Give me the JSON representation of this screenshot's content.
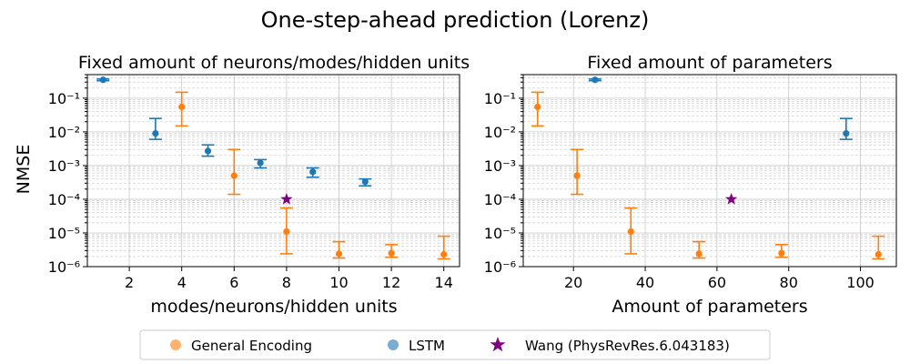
{
  "figure": {
    "suptitle": "One-step-ahead prediction (Lorenz)"
  },
  "colors": {
    "general": "#ff7f0e",
    "lstm": "#1f77b4",
    "wang": "#800080"
  },
  "legend": {
    "placement": "bottom-center",
    "entries": [
      "General Encoding",
      "LSTM",
      "Wang (PhysRevRes.6.043183)"
    ]
  },
  "chart_data": [
    {
      "type": "scatter",
      "title": "Fixed amount of neurons/modes/hidden units",
      "xlabel": "modes/neurons/hidden units",
      "ylabel": "NMSE",
      "yscale": "log",
      "xlim": [
        0.4,
        14.6
      ],
      "ylim": [
        1e-06,
        0.5
      ],
      "xticks": [
        2,
        4,
        6,
        8,
        10,
        12,
        14
      ],
      "yticks": [
        1e-06,
        1e-05,
        0.0001,
        0.001,
        0.01,
        0.1
      ],
      "grid": true,
      "series": [
        {
          "name": "General Encoding",
          "points": [
            {
              "x": 4,
              "y": 0.055,
              "ylo": 0.015,
              "yhi": 0.15
            },
            {
              "x": 6,
              "y": 0.0005,
              "ylo": 0.00014,
              "yhi": 0.003
            },
            {
              "x": 8,
              "y": 1.1e-05,
              "ylo": 2.4e-06,
              "yhi": 5.5e-05
            },
            {
              "x": 10,
              "y": 2.4e-06,
              "ylo": 1.8e-06,
              "yhi": 5.5e-06
            },
            {
              "x": 12,
              "y": 2.5e-06,
              "ylo": 1.9e-06,
              "yhi": 4.5e-06
            },
            {
              "x": 14,
              "y": 2.3e-06,
              "ylo": 1.7e-06,
              "yhi": 8e-06
            }
          ]
        },
        {
          "name": "LSTM",
          "points": [
            {
              "x": 1,
              "y": 0.35,
              "ylo": 0.33,
              "yhi": 0.37
            },
            {
              "x": 3,
              "y": 0.009,
              "ylo": 0.006,
              "yhi": 0.025
            },
            {
              "x": 5,
              "y": 0.0027,
              "ylo": 0.0019,
              "yhi": 0.0041
            },
            {
              "x": 7,
              "y": 0.0012,
              "ylo": 0.00085,
              "yhi": 0.0015
            },
            {
              "x": 9,
              "y": 0.00065,
              "ylo": 0.00045,
              "yhi": 0.00085
            },
            {
              "x": 11,
              "y": 0.00033,
              "ylo": 0.00025,
              "yhi": 0.0004
            }
          ]
        },
        {
          "name": "Wang (PhysRevRes.6.043183)",
          "points": [
            {
              "x": 8,
              "y": 0.0001
            }
          ]
        }
      ]
    },
    {
      "type": "scatter",
      "title": "Fixed amount of parameters",
      "xlabel": "Amount of parameters",
      "ylabel": "",
      "yscale": "log",
      "xlim": [
        6,
        110
      ],
      "ylim": [
        1e-06,
        0.5
      ],
      "xticks": [
        20,
        40,
        60,
        80,
        100
      ],
      "yticks": [
        1e-06,
        1e-05,
        0.0001,
        0.001,
        0.01,
        0.1
      ],
      "grid": true,
      "series": [
        {
          "name": "General Encoding",
          "points": [
            {
              "x": 10,
              "y": 0.055,
              "ylo": 0.015,
              "yhi": 0.15
            },
            {
              "x": 21,
              "y": 0.0005,
              "ylo": 0.00014,
              "yhi": 0.003
            },
            {
              "x": 36,
              "y": 1.1e-05,
              "ylo": 2.4e-06,
              "yhi": 5.5e-05
            },
            {
              "x": 55,
              "y": 2.4e-06,
              "ylo": 1.8e-06,
              "yhi": 5.5e-06
            },
            {
              "x": 78,
              "y": 2.5e-06,
              "ylo": 1.9e-06,
              "yhi": 4.5e-06
            },
            {
              "x": 105,
              "y": 2.3e-06,
              "ylo": 1.7e-06,
              "yhi": 8e-06
            }
          ]
        },
        {
          "name": "LSTM",
          "points": [
            {
              "x": 26,
              "y": 0.35,
              "ylo": 0.33,
              "yhi": 0.37
            },
            {
              "x": 96,
              "y": 0.009,
              "ylo": 0.006,
              "yhi": 0.025
            }
          ]
        },
        {
          "name": "Wang (PhysRevRes.6.043183)",
          "points": [
            {
              "x": 64,
              "y": 0.0001
            }
          ]
        }
      ]
    }
  ]
}
